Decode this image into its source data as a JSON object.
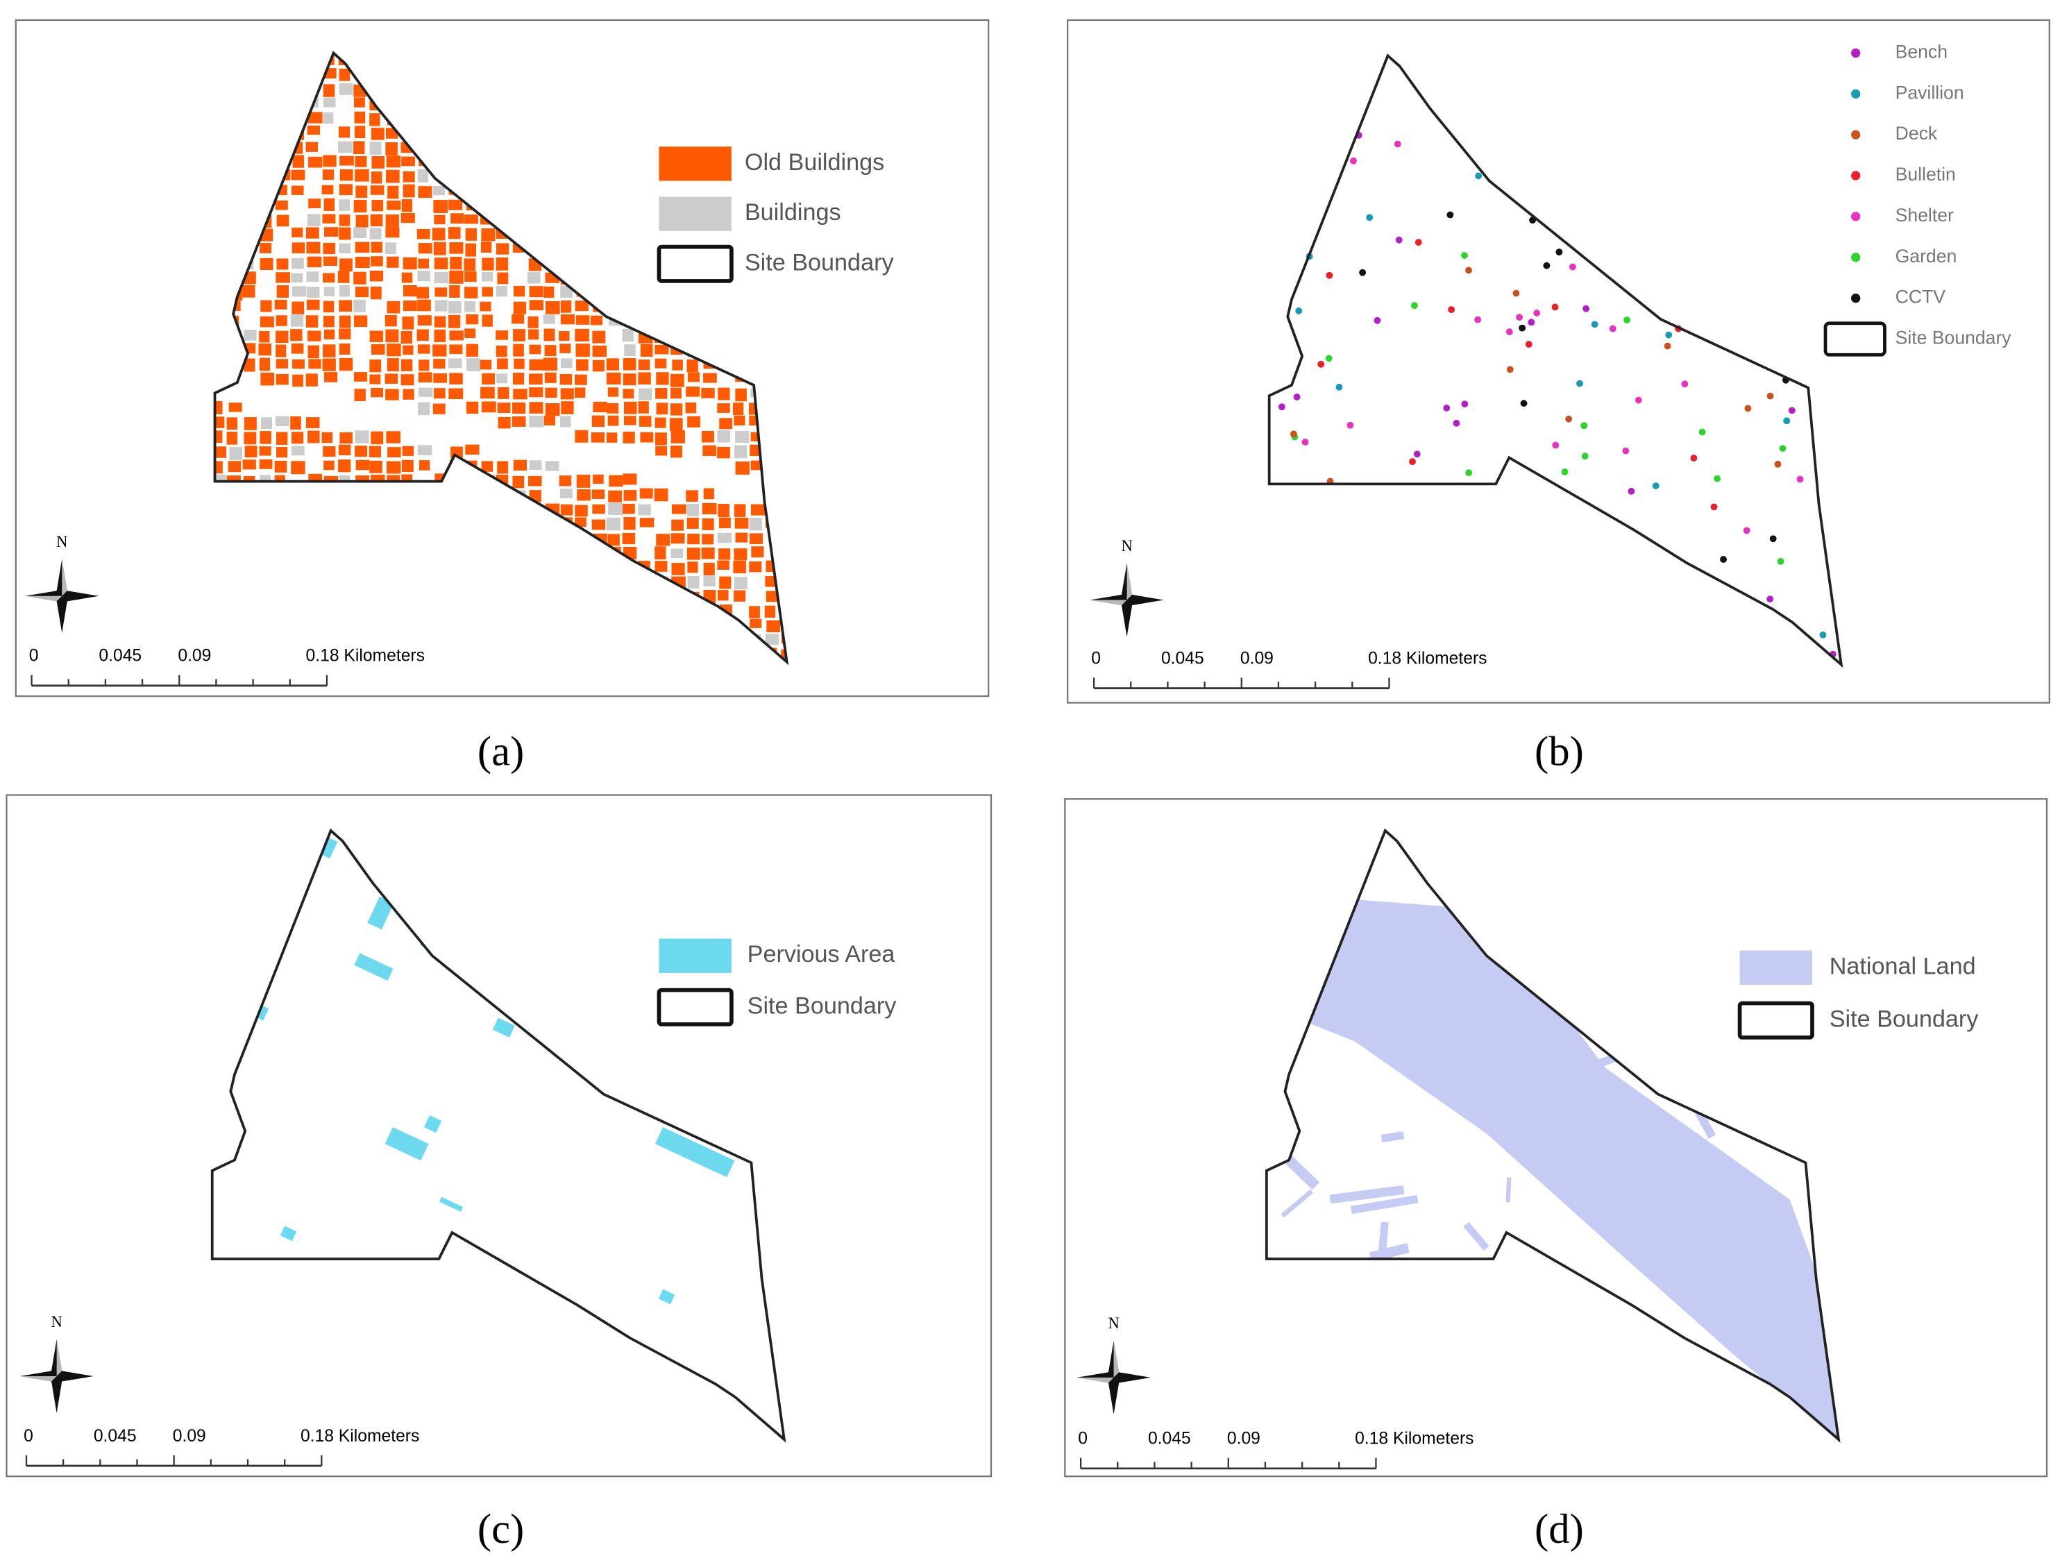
{
  "panels": [
    {
      "label": "(a)",
      "north": "N",
      "scale": [
        "0",
        "0.045",
        "0.09",
        "0.18 Kilometers"
      ],
      "legend": [
        {
          "name": "Old Buildings",
          "color": "#ff5a00"
        },
        {
          "name": "Buildings",
          "color": "#cccccc"
        },
        {
          "name": "Site Boundary"
        }
      ]
    },
    {
      "label": "(b)",
      "north": "N",
      "scale": [
        "0",
        "0.045",
        "0.09",
        "0.18 Kilometers"
      ],
      "legend": [
        {
          "name": "Bench",
          "color": "#b31fc6"
        },
        {
          "name": "Pavillion",
          "color": "#1a9bb5"
        },
        {
          "name": "Deck",
          "color": "#c8531f"
        },
        {
          "name": "Bulletin",
          "color": "#e8202a"
        },
        {
          "name": "Shelter",
          "color": "#e832c0"
        },
        {
          "name": "Garden",
          "color": "#2ed42e"
        },
        {
          "name": "CCTV",
          "color": "#111111"
        },
        {
          "name": "Site Boundary"
        }
      ]
    },
    {
      "label": "(c)",
      "north": "N",
      "scale": [
        "0",
        "0.045",
        "0.09",
        "0.18 Kilometers"
      ],
      "legend": [
        {
          "name": "Pervious Area",
          "color": "#6cd9ef"
        },
        {
          "name": "Site Boundary"
        }
      ]
    },
    {
      "label": "(d)",
      "north": "N",
      "scale": [
        "0",
        "0.045",
        "0.09",
        "0.18 Kilometers"
      ],
      "legend": [
        {
          "name": "National Land",
          "color": "#c6cbf3"
        },
        {
          "name": "Site Boundary"
        }
      ]
    }
  ]
}
